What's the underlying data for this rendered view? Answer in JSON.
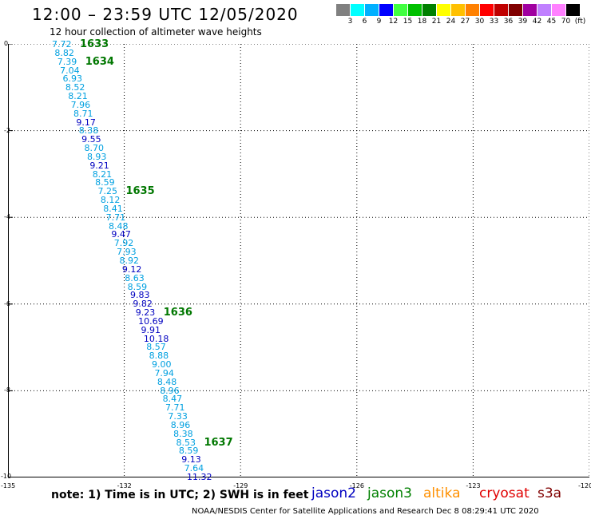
{
  "title": "12:00 – 23:59 UTC 12/05/2020",
  "subtitle": "12 hour collection of altimeter wave heights",
  "color_scale": {
    "colors": [
      "#808080",
      "#00ffff",
      "#00b0ff",
      "#0000ff",
      "#40ff40",
      "#00c000",
      "#008000",
      "#ffff00",
      "#ffc000",
      "#ff8000",
      "#ff0000",
      "#c00000",
      "#800000",
      "#a000a0",
      "#c080ff",
      "#ff80ff",
      "#000000"
    ],
    "labels": [
      "3",
      "6",
      "9",
      "12",
      "15",
      "18",
      "21",
      "24",
      "27",
      "30",
      "33",
      "36",
      "39",
      "42",
      "45",
      "70",
      "(ft)"
    ]
  },
  "map": {
    "y_ticks": [
      "0",
      "-2",
      "-4",
      "-6",
      "-8",
      "-10"
    ],
    "x_ticks": [
      "-135",
      "-132",
      "-129",
      "-126",
      "-123",
      "-120"
    ],
    "observations": [
      {
        "v": "7.72",
        "c": "#00a0e0"
      },
      {
        "v": "8.82",
        "c": "#00a0e0"
      },
      {
        "v": "7.39",
        "c": "#00a0e0"
      },
      {
        "v": "7.04",
        "c": "#00a0e0"
      },
      {
        "v": "6.93",
        "c": "#00a0e0"
      },
      {
        "v": "8.52",
        "c": "#00a0e0"
      },
      {
        "v": "8.21",
        "c": "#00a0e0"
      },
      {
        "v": "7.96",
        "c": "#00a0e0"
      },
      {
        "v": "8.71",
        "c": "#00a0e0"
      },
      {
        "v": "9.17",
        "c": "#0000c0"
      },
      {
        "v": "8.38",
        "c": "#00a0e0"
      },
      {
        "v": "9.55",
        "c": "#0000c0"
      },
      {
        "v": "8.70",
        "c": "#00a0e0"
      },
      {
        "v": "8.93",
        "c": "#00a0e0"
      },
      {
        "v": "9.21",
        "c": "#0000c0"
      },
      {
        "v": "8.21",
        "c": "#00a0e0"
      },
      {
        "v": "8.59",
        "c": "#00a0e0"
      },
      {
        "v": "7.25",
        "c": "#00a0e0"
      },
      {
        "v": "8.12",
        "c": "#00a0e0"
      },
      {
        "v": "8.41",
        "c": "#00a0e0"
      },
      {
        "v": "7.71",
        "c": "#00a0e0"
      },
      {
        "v": "8.48",
        "c": "#00a0e0"
      },
      {
        "v": "9.47",
        "c": "#0000c0"
      },
      {
        "v": "7.92",
        "c": "#00a0e0"
      },
      {
        "v": "7.93",
        "c": "#00a0e0"
      },
      {
        "v": "8.92",
        "c": "#00a0e0"
      },
      {
        "v": "9.12",
        "c": "#0000c0"
      },
      {
        "v": "8.63",
        "c": "#00a0e0"
      },
      {
        "v": "8.59",
        "c": "#00a0e0"
      },
      {
        "v": "9.83",
        "c": "#0000c0"
      },
      {
        "v": "9.82",
        "c": "#0000c0"
      },
      {
        "v": "9.23",
        "c": "#0000c0"
      },
      {
        "v": "10.69",
        "c": "#0000c0"
      },
      {
        "v": "9.91",
        "c": "#0000c0"
      },
      {
        "v": "10.18",
        "c": "#0000c0"
      },
      {
        "v": "8.57",
        "c": "#00a0e0"
      },
      {
        "v": "8.88",
        "c": "#00a0e0"
      },
      {
        "v": "9.00",
        "c": "#00a0e0"
      },
      {
        "v": "7.94",
        "c": "#00a0e0"
      },
      {
        "v": "8.48",
        "c": "#00a0e0"
      },
      {
        "v": "8.96",
        "c": "#00a0e0"
      },
      {
        "v": "8.47",
        "c": "#00a0e0"
      },
      {
        "v": "7.71",
        "c": "#00a0e0"
      },
      {
        "v": "7.33",
        "c": "#00a0e0"
      },
      {
        "v": "8.96",
        "c": "#00a0e0"
      },
      {
        "v": "8.38",
        "c": "#00a0e0"
      },
      {
        "v": "8.53",
        "c": "#00a0e0"
      },
      {
        "v": "8.59",
        "c": "#00a0e0"
      },
      {
        "v": "9.13",
        "c": "#0000c0"
      },
      {
        "v": "7.64",
        "c": "#00a0e0"
      },
      {
        "v": "11.32",
        "c": "#0000c0"
      }
    ],
    "pass_times": [
      "1633",
      "1634",
      "1635",
      "1636",
      "1637"
    ]
  },
  "note": "note:  1) Time is in UTC;  2) SWH is in feet",
  "satellites": [
    {
      "name": "jason2",
      "color": "#0000c0"
    },
    {
      "name": "jason3",
      "color": "#008000"
    },
    {
      "name": "altika",
      "color": "#ff9000"
    },
    {
      "name": "cryosat",
      "color": "#e00000"
    },
    {
      "name": "s3a",
      "color": "#800000"
    }
  ],
  "footer": "NOAA/NESDIS Center for Satellite Applications and Research    Dec  8 08:29:41 UTC 2020"
}
